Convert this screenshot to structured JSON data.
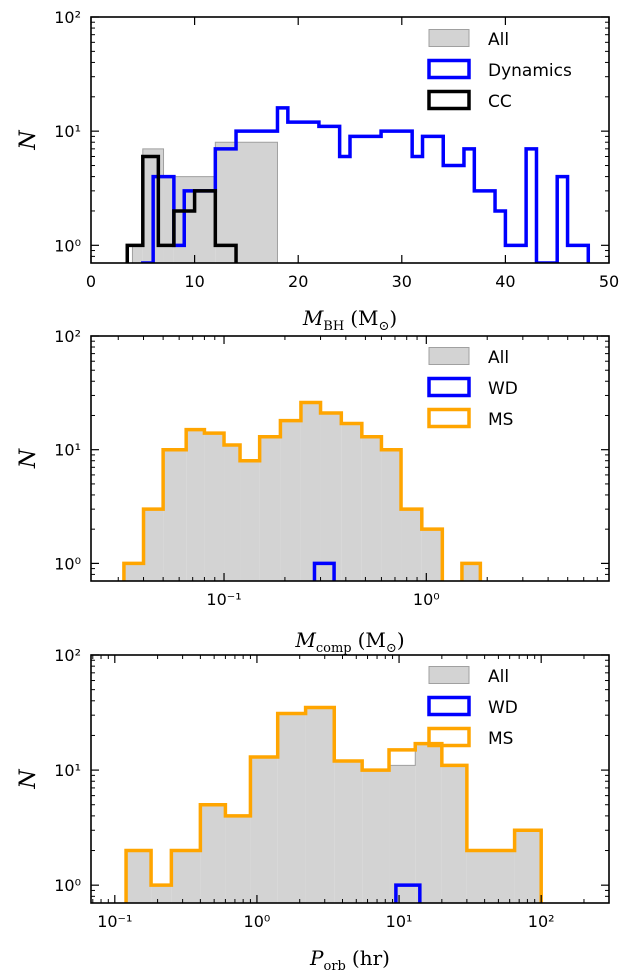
{
  "chart_data": [
    {
      "type": "histogram",
      "xscale": "linear",
      "yscale": "log",
      "xlim": [
        0,
        50
      ],
      "ylim": [
        0.7,
        100
      ],
      "x_ticks": [
        0,
        10,
        20,
        30,
        40,
        50
      ],
      "x_tick_labels": [
        "0",
        "10",
        "20",
        "30",
        "40",
        "50"
      ],
      "y_tick_labels": [
        "10⁰",
        "10¹",
        "10²"
      ],
      "ylabel": "N",
      "xlabel_main": "M",
      "xlabel_sub": "BH",
      "xlabel_unit": "(M",
      "xlabel_unit_sub": "⊙",
      "xlabel_close": ")",
      "legend_position": "top-right",
      "series": [
        {
          "name": "All",
          "style": "filled",
          "fill": "#d3d3d3",
          "edge": "#a0a0a0",
          "bins": [
            [
              4,
              5,
              1
            ],
            [
              5,
              7,
              7
            ],
            [
              7,
              8,
              4
            ],
            [
              8,
              12,
              4
            ],
            [
              12,
              18,
              8
            ]
          ]
        },
        {
          "name": "Dynamics",
          "style": "step",
          "color": "#0000ff",
          "bins": [
            [
              5,
              6,
              0.7
            ],
            [
              6,
              8,
              4
            ],
            [
              8,
              9,
              1
            ],
            [
              9,
              10,
              3
            ],
            [
              10,
              12,
              3
            ],
            [
              12,
              14,
              7
            ],
            [
              14,
              16,
              10
            ],
            [
              16,
              18,
              10
            ],
            [
              18,
              19,
              16
            ],
            [
              19,
              21,
              12
            ],
            [
              21,
              22,
              12
            ],
            [
              22,
              23,
              11
            ],
            [
              23,
              24,
              11
            ],
            [
              24,
              25,
              6
            ],
            [
              25,
              26,
              9
            ],
            [
              26,
              28,
              9
            ],
            [
              28,
              30,
              10
            ],
            [
              30,
              31,
              10
            ],
            [
              31,
              32,
              6
            ],
            [
              32,
              33,
              9
            ],
            [
              33,
              34,
              9
            ],
            [
              34,
              35,
              5
            ],
            [
              35,
              36,
              5
            ],
            [
              36,
              37,
              7
            ],
            [
              37,
              38,
              3
            ],
            [
              38,
              39,
              3
            ],
            [
              39,
              40,
              2
            ],
            [
              40,
              41,
              1
            ],
            [
              41,
              42,
              1
            ],
            [
              42,
              43,
              7
            ],
            [
              43,
              44,
              0.7
            ],
            [
              44,
              45,
              0.7
            ],
            [
              45,
              46,
              4
            ],
            [
              46,
              47,
              1
            ],
            [
              47,
              48,
              1
            ]
          ]
        },
        {
          "name": "CC",
          "style": "step",
          "color": "#000000",
          "bins": [
            [
              3.5,
              5,
              1
            ],
            [
              5,
              6.5,
              6
            ],
            [
              6.5,
              8,
              1
            ],
            [
              8,
              9,
              2
            ],
            [
              9,
              10,
              2
            ],
            [
              10,
              12,
              3
            ],
            [
              12,
              14,
              1
            ]
          ]
        }
      ]
    },
    {
      "type": "histogram",
      "xscale": "log",
      "yscale": "log",
      "xlim": [
        0.022,
        8
      ],
      "ylim": [
        0.7,
        100
      ],
      "x_ticks": [
        0.1,
        1
      ],
      "x_tick_labels": [
        "10⁻¹",
        "10⁰"
      ],
      "y_tick_labels": [
        "10⁰",
        "10¹",
        "10²"
      ],
      "ylabel": "N",
      "xlabel_main": "M",
      "xlabel_sub": "comp",
      "xlabel_unit": "(M",
      "xlabel_unit_sub": "⊙",
      "xlabel_close": ")",
      "legend_position": "top-right",
      "series": [
        {
          "name": "All",
          "style": "filled",
          "fill": "#d3d3d3",
          "edge": "#a0a0a0",
          "bins": [
            [
              0.032,
              0.04,
              1
            ],
            [
              0.04,
              0.05,
              3
            ],
            [
              0.05,
              0.065,
              10
            ],
            [
              0.065,
              0.08,
              15
            ],
            [
              0.08,
              0.1,
              14
            ],
            [
              0.1,
              0.12,
              11
            ],
            [
              0.12,
              0.15,
              8
            ],
            [
              0.15,
              0.19,
              13
            ],
            [
              0.19,
              0.24,
              18
            ],
            [
              0.24,
              0.3,
              26
            ],
            [
              0.3,
              0.38,
              21
            ],
            [
              0.38,
              0.48,
              17
            ],
            [
              0.48,
              0.6,
              13
            ],
            [
              0.6,
              0.75,
              10
            ],
            [
              0.75,
              0.95,
              3
            ],
            [
              0.95,
              1.2,
              2
            ],
            [
              1.5,
              1.85,
              1
            ]
          ]
        },
        {
          "name": "WD",
          "style": "step",
          "color": "#0000ff",
          "bins": [
            [
              0.28,
              0.35,
              1
            ]
          ]
        },
        {
          "name": "MS",
          "style": "step",
          "color": "#ffa500",
          "bins": [
            [
              0.032,
              0.04,
              1
            ],
            [
              0.04,
              0.05,
              3
            ],
            [
              0.05,
              0.065,
              10
            ],
            [
              0.065,
              0.08,
              15
            ],
            [
              0.08,
              0.1,
              14
            ],
            [
              0.1,
              0.12,
              11
            ],
            [
              0.12,
              0.15,
              8
            ],
            [
              0.15,
              0.19,
              13
            ],
            [
              0.19,
              0.24,
              18
            ],
            [
              0.24,
              0.3,
              26
            ],
            [
              0.3,
              0.38,
              21
            ],
            [
              0.38,
              0.48,
              17
            ],
            [
              0.48,
              0.6,
              13
            ],
            [
              0.6,
              0.75,
              10
            ],
            [
              0.75,
              0.95,
              3
            ],
            [
              0.95,
              1.2,
              2
            ],
            [
              1.5,
              1.85,
              1
            ]
          ]
        }
      ]
    },
    {
      "type": "histogram",
      "xscale": "log",
      "yscale": "log",
      "xlim": [
        0.068,
        300
      ],
      "ylim": [
        0.7,
        100
      ],
      "x_ticks": [
        0.1,
        1,
        10,
        100
      ],
      "x_tick_labels": [
        "10⁻¹",
        "10⁰",
        "10¹",
        "10²"
      ],
      "y_tick_labels": [
        "10⁰",
        "10¹",
        "10²"
      ],
      "ylabel": "N",
      "xlabel_main": "P",
      "xlabel_sub": "orb",
      "xlabel_unit": "(hr)",
      "xlabel_unit_sub": "",
      "xlabel_close": "",
      "legend_position": "top-right",
      "series": [
        {
          "name": "All",
          "style": "filled",
          "fill": "#d3d3d3",
          "edge": "#a0a0a0",
          "bins": [
            [
              0.12,
              0.18,
              2
            ],
            [
              0.18,
              0.25,
              1
            ],
            [
              0.25,
              0.4,
              2
            ],
            [
              0.4,
              0.6,
              5
            ],
            [
              0.6,
              0.9,
              4
            ],
            [
              0.9,
              1.4,
              13
            ],
            [
              1.4,
              2.2,
              31
            ],
            [
              2.2,
              3.5,
              35
            ],
            [
              3.5,
              5.5,
              12
            ],
            [
              5.5,
              8.5,
              10
            ],
            [
              8.5,
              13,
              11
            ],
            [
              13,
              20,
              17
            ],
            [
              20,
              30,
              11
            ],
            [
              30,
              65,
              2
            ],
            [
              65,
              100,
              3
            ]
          ]
        },
        {
          "name": "WD",
          "style": "step",
          "color": "#0000ff",
          "bins": [
            [
              9.5,
              14,
              1
            ]
          ]
        },
        {
          "name": "MS",
          "style": "step",
          "color": "#ffa500",
          "bins": [
            [
              0.12,
              0.18,
              2
            ],
            [
              0.18,
              0.25,
              1
            ],
            [
              0.25,
              0.4,
              2
            ],
            [
              0.4,
              0.6,
              5
            ],
            [
              0.6,
              0.9,
              4
            ],
            [
              0.9,
              1.4,
              13
            ],
            [
              1.4,
              2.2,
              31
            ],
            [
              2.2,
              3.5,
              35
            ],
            [
              3.5,
              5.5,
              12
            ],
            [
              5.5,
              8.5,
              10
            ],
            [
              8.5,
              13,
              15
            ],
            [
              13,
              20,
              17
            ],
            [
              20,
              30,
              11
            ],
            [
              30,
              65,
              2
            ],
            [
              65,
              100,
              3
            ]
          ]
        }
      ]
    }
  ]
}
